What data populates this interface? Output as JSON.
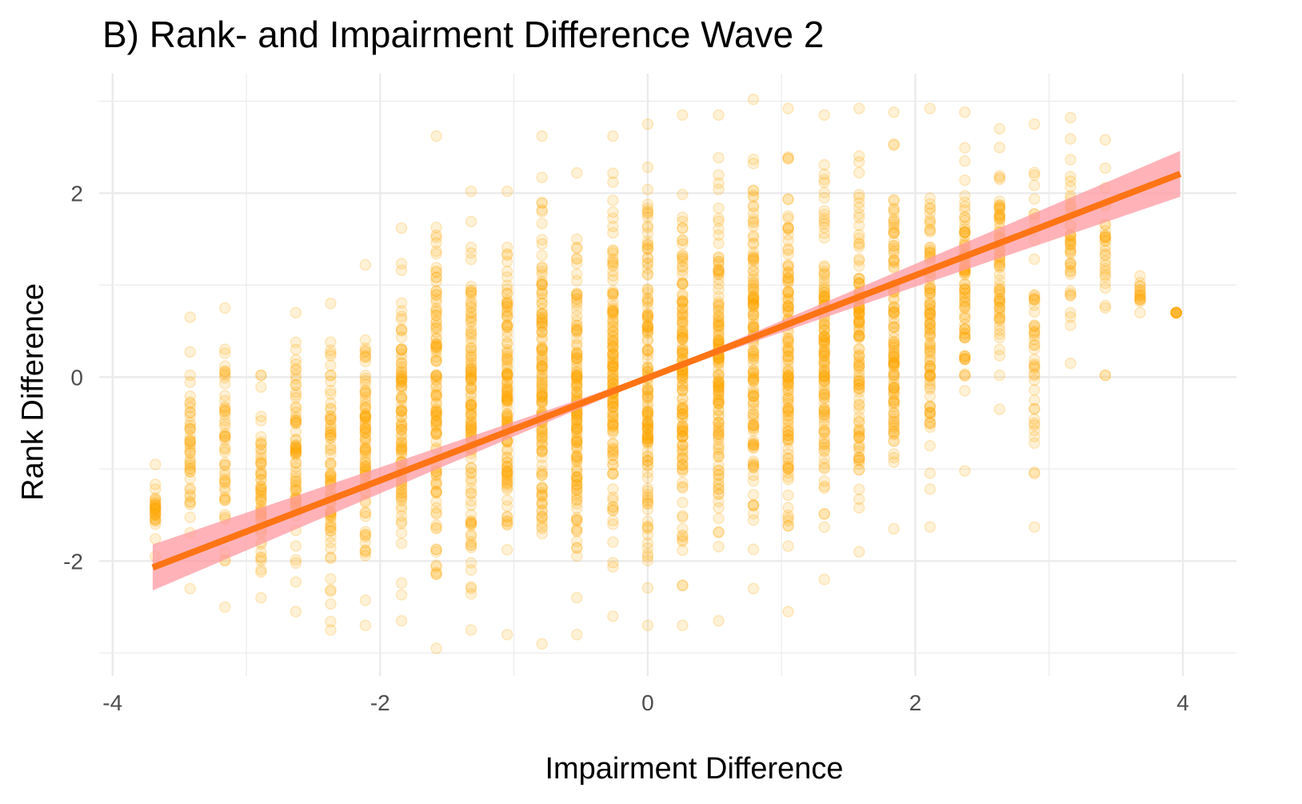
{
  "chart_data": {
    "type": "scatter",
    "title": "B) Rank- and Impairment Difference Wave 2",
    "xlabel": "Impairment Difference",
    "ylabel": "Rank Difference",
    "xlim": [
      -4.1,
      4.4
    ],
    "ylim": [
      -3.25,
      3.3
    ],
    "x_ticks": [
      -4,
      -2,
      0,
      2,
      4
    ],
    "x_tick_labels": [
      "-4",
      "-2",
      "0",
      "2",
      "4"
    ],
    "y_ticks": [
      -2,
      0,
      2
    ],
    "y_tick_labels": [
      "-2",
      "0",
      "2"
    ],
    "grid": true,
    "legend": "none",
    "colors": {
      "points": "#ffa500",
      "fit_line": "#ff7414",
      "confidence_band": "#ff9aa2",
      "grid": "#ebebeb"
    },
    "point_columns": [
      {
        "x": -3.68,
        "y_min": -1.95,
        "y_max": -0.95,
        "density": 0.2
      },
      {
        "x": -3.42,
        "y_min": -2.3,
        "y_max": 0.65,
        "density": 0.3
      },
      {
        "x": -3.16,
        "y_min": -2.5,
        "y_max": 0.75,
        "density": 0.35
      },
      {
        "x": -2.89,
        "y_min": -2.4,
        "y_max": 0.02,
        "density": 0.4
      },
      {
        "x": -2.63,
        "y_min": -2.55,
        "y_max": 0.7,
        "density": 0.5
      },
      {
        "x": -2.37,
        "y_min": -2.75,
        "y_max": 0.8,
        "density": 0.55
      },
      {
        "x": -2.11,
        "y_min": -2.7,
        "y_max": 1.22,
        "density": 0.6
      },
      {
        "x": -1.84,
        "y_min": -2.65,
        "y_max": 1.62,
        "density": 0.7
      },
      {
        "x": -1.58,
        "y_min": -2.95,
        "y_max": 2.62,
        "density": 0.8
      },
      {
        "x": -1.32,
        "y_min": -2.75,
        "y_max": 2.02,
        "density": 0.85
      },
      {
        "x": -1.05,
        "y_min": -2.8,
        "y_max": 2.02,
        "density": 0.9
      },
      {
        "x": -0.79,
        "y_min": -2.9,
        "y_max": 2.62,
        "density": 0.95
      },
      {
        "x": -0.53,
        "y_min": -2.8,
        "y_max": 2.22,
        "density": 1.0
      },
      {
        "x": -0.26,
        "y_min": -2.6,
        "y_max": 2.62,
        "density": 1.0
      },
      {
        "x": 0.0,
        "y_min": -2.7,
        "y_max": 2.75,
        "density": 1.0
      },
      {
        "x": 0.26,
        "y_min": -2.7,
        "y_max": 2.85,
        "density": 1.0
      },
      {
        "x": 0.53,
        "y_min": -2.65,
        "y_max": 2.85,
        "density": 1.0
      },
      {
        "x": 0.79,
        "y_min": -2.3,
        "y_max": 3.02,
        "density": 0.95
      },
      {
        "x": 1.05,
        "y_min": -2.55,
        "y_max": 2.92,
        "density": 0.95
      },
      {
        "x": 1.32,
        "y_min": -2.2,
        "y_max": 2.85,
        "density": 0.9
      },
      {
        "x": 1.58,
        "y_min": -1.9,
        "y_max": 2.92,
        "density": 0.85
      },
      {
        "x": 1.84,
        "y_min": -1.65,
        "y_max": 2.88,
        "density": 0.8
      },
      {
        "x": 2.11,
        "y_min": -1.63,
        "y_max": 2.92,
        "density": 0.7
      },
      {
        "x": 2.37,
        "y_min": -1.02,
        "y_max": 2.88,
        "density": 0.6
      },
      {
        "x": 2.63,
        "y_min": -0.35,
        "y_max": 2.7,
        "density": 0.5
      },
      {
        "x": 2.89,
        "y_min": -1.63,
        "y_max": 2.75,
        "density": 0.35
      },
      {
        "x": 3.16,
        "y_min": 0.15,
        "y_max": 2.82,
        "density": 0.3
      },
      {
        "x": 3.42,
        "y_min": 0.02,
        "y_max": 2.58,
        "density": 0.2
      },
      {
        "x": 3.68,
        "y_min": 0.7,
        "y_max": 1.1,
        "density": 0.1
      },
      {
        "x": 3.95,
        "y_min": 0.7,
        "y_max": 0.7,
        "density": 0.05
      }
    ],
    "fit_line": {
      "x": [
        -3.7,
        3.98
      ],
      "y": [
        -2.07,
        2.21
      ],
      "ci_halfwidth_at_ends": 0.25
    }
  }
}
